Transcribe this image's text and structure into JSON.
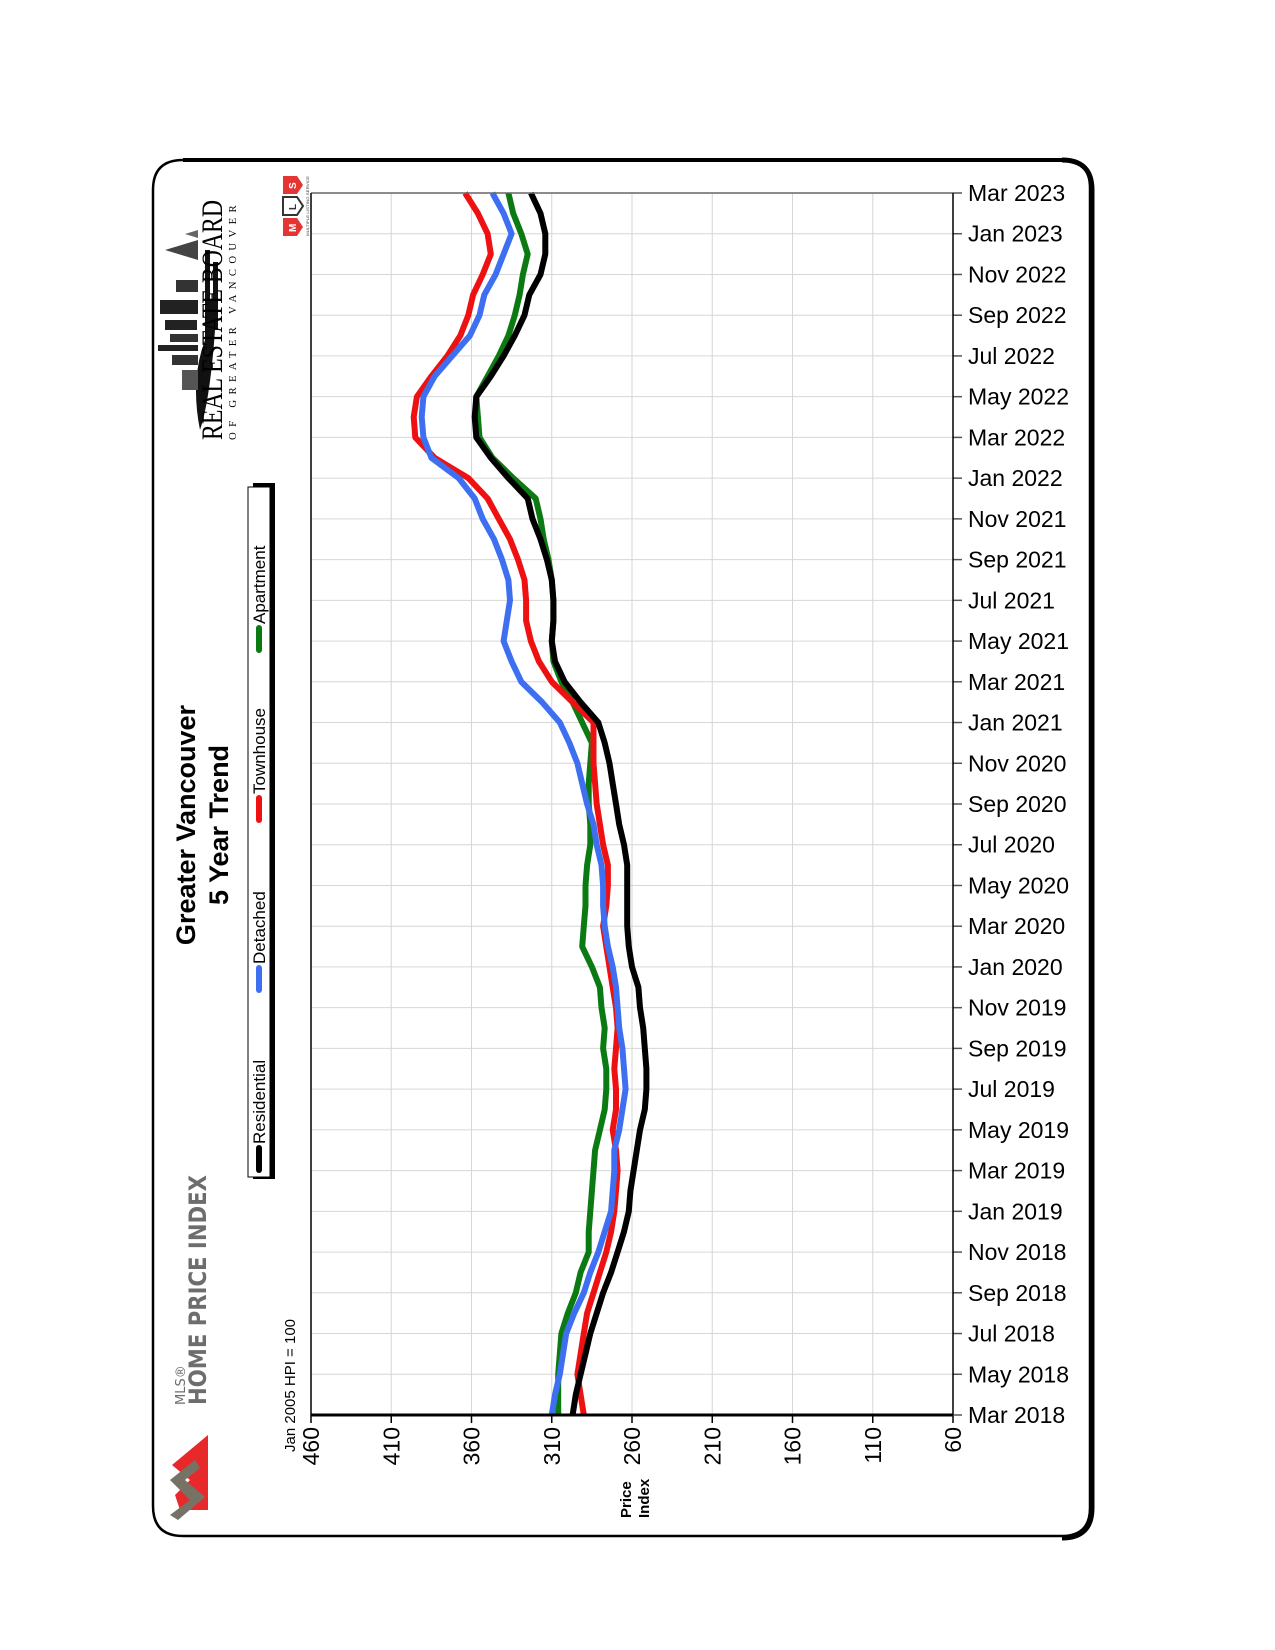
{
  "page": {
    "title_line1": "Greater Vancouver",
    "title_line2": "5 Year Trend",
    "baseline_note": "Jan 2005 HPI = 100",
    "y_axis_title_line1": "Price",
    "y_axis_title_line2": "Index",
    "logos": {
      "rebgv_main": "REAL ESTATE BOARD",
      "rebgv_sub": "OF GREATER VANCOUVER",
      "mls_letters": [
        "M",
        "L",
        "S"
      ],
      "mls_tagline": "MULTIPLE LISTING SERVICE",
      "hpi_prefix": "MLS®",
      "hpi_name": "HOME PRICE INDEX"
    }
  },
  "chart_data": {
    "type": "line",
    "orientation": "rotated-90",
    "title": "Greater Vancouver 5 Year Trend",
    "xlabel": "",
    "ylabel": "Price Index",
    "note": "Jan 2005 HPI = 100",
    "ylim": [
      60,
      460
    ],
    "y_ticks": [
      460,
      410,
      360,
      310,
      260,
      210,
      160,
      110,
      60
    ],
    "x_tick_labels": [
      "Mar 2018",
      "May 2018",
      "Jul 2018",
      "Sep 2018",
      "Nov 2018",
      "Jan 2019",
      "Mar 2019",
      "May 2019",
      "Jul 2019",
      "Sep 2019",
      "Nov 2019",
      "Jan 2020",
      "Mar 2020",
      "May 2020",
      "Jul 2020",
      "Sep 2020",
      "Nov 2020",
      "Jan 2021",
      "Mar 2021",
      "May 2021",
      "Jul 2021",
      "Sep 2021",
      "Nov 2021",
      "Jan 2022",
      "Mar 2022",
      "May 2022",
      "Jul 2022",
      "Sep 2022",
      "Nov 2022",
      "Jan 2023",
      "Mar 2023"
    ],
    "x": [
      "Mar 2018",
      "Apr 2018",
      "May 2018",
      "Jun 2018",
      "Jul 2018",
      "Aug 2018",
      "Sep 2018",
      "Oct 2018",
      "Nov 2018",
      "Dec 2018",
      "Jan 2019",
      "Feb 2019",
      "Mar 2019",
      "Apr 2019",
      "May 2019",
      "Jun 2019",
      "Jul 2019",
      "Aug 2019",
      "Sep 2019",
      "Oct 2019",
      "Nov 2019",
      "Dec 2019",
      "Jan 2020",
      "Feb 2020",
      "Mar 2020",
      "Apr 2020",
      "May 2020",
      "Jun 2020",
      "Jul 2020",
      "Aug 2020",
      "Sep 2020",
      "Oct 2020",
      "Nov 2020",
      "Dec 2020",
      "Jan 2021",
      "Feb 2021",
      "Mar 2021",
      "Apr 2021",
      "May 2021",
      "Jun 2021",
      "Jul 2021",
      "Aug 2021",
      "Sep 2021",
      "Oct 2021",
      "Nov 2021",
      "Dec 2021",
      "Jan 2022",
      "Feb 2022",
      "Mar 2022",
      "Apr 2022",
      "May 2022",
      "Jun 2022",
      "Jul 2022",
      "Aug 2022",
      "Sep 2022",
      "Oct 2022",
      "Nov 2022",
      "Dec 2022",
      "Jan 2023",
      "Feb 2023",
      "Mar 2023"
    ],
    "grid": true,
    "legend_position": "left",
    "series": [
      {
        "name": "Residential",
        "color": "#000000",
        "values": [
          297,
          295,
          292,
          289,
          286,
          282,
          278,
          273,
          269,
          265,
          262,
          261,
          259,
          257,
          255,
          252,
          251,
          251,
          252,
          253,
          255,
          256,
          260,
          262,
          263,
          263,
          263,
          263,
          265,
          268,
          270,
          272,
          274,
          277,
          281,
          292,
          302,
          308,
          310,
          309,
          309,
          310,
          313,
          317,
          322,
          325,
          337,
          348,
          357,
          358,
          357,
          348,
          340,
          333,
          327,
          324,
          317,
          314,
          314,
          317,
          323
        ]
      },
      {
        "name": "Detached",
        "color": "#3d6ff0",
        "values": [
          310,
          308,
          305,
          303,
          301,
          296,
          290,
          286,
          281,
          277,
          273,
          272,
          271,
          271,
          268,
          266,
          264,
          265,
          266,
          268,
          269,
          270,
          272,
          275,
          277,
          278,
          278,
          279,
          282,
          284,
          288,
          291,
          294,
          299,
          305,
          316,
          329,
          335,
          340,
          338,
          336,
          337,
          341,
          346,
          353,
          358,
          368,
          385,
          390,
          391,
          390,
          383,
          372,
          361,
          355,
          352,
          345,
          340,
          335,
          340,
          347
        ]
      },
      {
        "name": "Townhouse",
        "color": "#ee1111",
        "values": [
          290,
          292,
          294,
          292,
          290,
          288,
          284,
          280,
          276,
          273,
          271,
          270,
          269,
          270,
          272,
          270,
          270,
          271,
          270,
          269,
          270,
          272,
          274,
          276,
          278,
          276,
          275,
          275,
          278,
          280,
          282,
          283,
          284,
          284,
          284,
          297,
          310,
          318,
          323,
          326,
          326,
          327,
          331,
          336,
          343,
          350,
          362,
          383,
          395,
          396,
          394,
          385,
          375,
          367,
          362,
          359,
          353,
          348,
          350,
          356,
          364
        ]
      },
      {
        "name": "Apartment",
        "color": "#0c7a12",
        "values": [
          306,
          306,
          306,
          305,
          304,
          300,
          295,
          292,
          287,
          287,
          286,
          285,
          284,
          283,
          280,
          277,
          276,
          276,
          278,
          277,
          279,
          280,
          285,
          291,
          290,
          289,
          289,
          288,
          286,
          286,
          287,
          287,
          286,
          285,
          291,
          297,
          304,
          309,
          310,
          309,
          309,
          310,
          312,
          315,
          317,
          320,
          334,
          347,
          355,
          356,
          357,
          350,
          343,
          337,
          333,
          330,
          328,
          325,
          329,
          334,
          337
        ]
      }
    ]
  }
}
